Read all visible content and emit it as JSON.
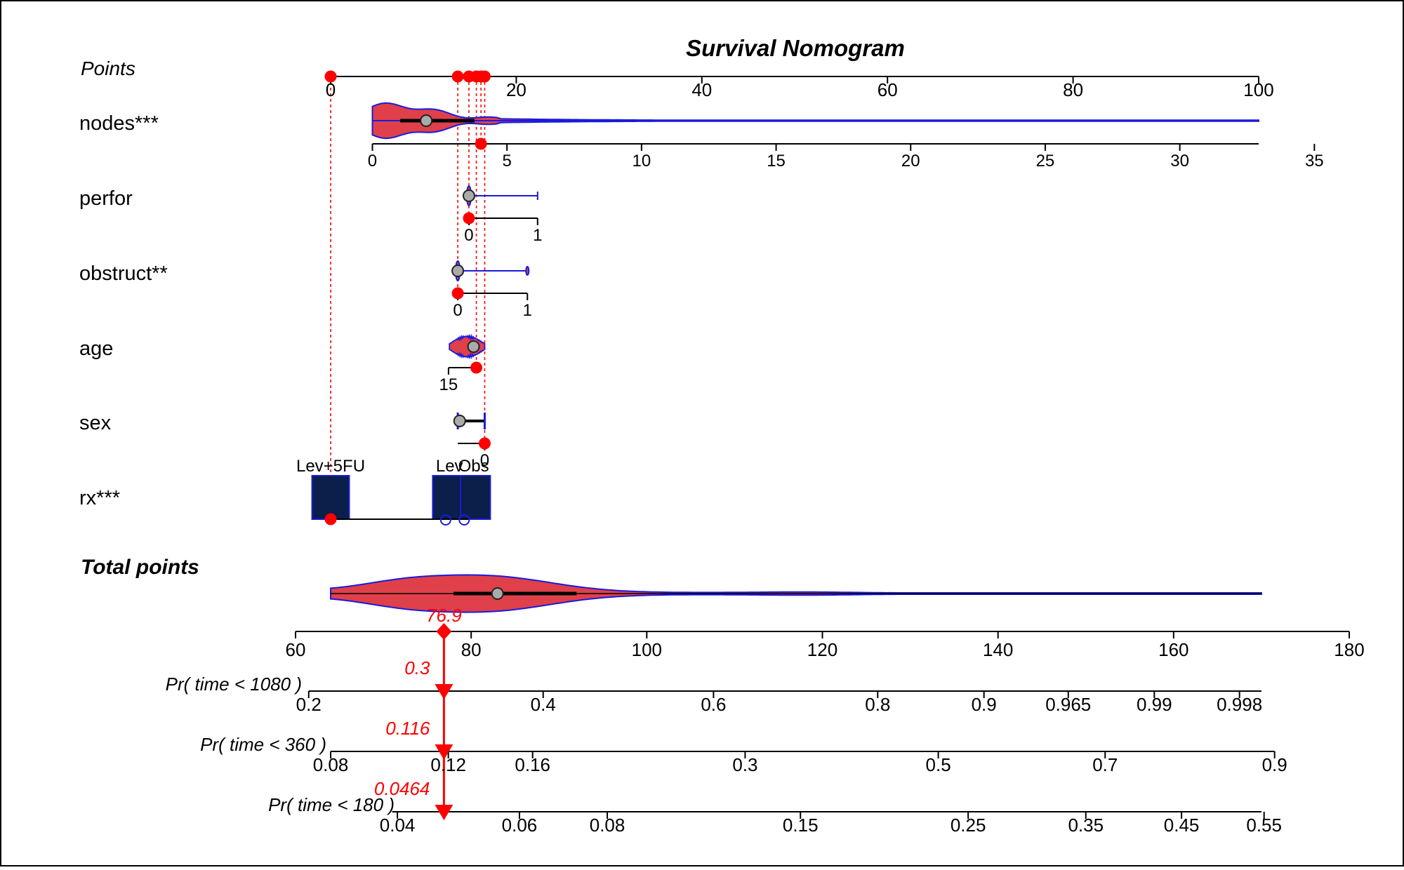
{
  "chart_data": {
    "type": "nomogram",
    "title": "Survival Nomogram",
    "points_axis": {
      "label": "Points",
      "range": [
        0,
        100
      ],
      "ticks": [
        "0",
        "20",
        "40",
        "60",
        "80",
        "100"
      ],
      "ticks_at": [
        0,
        20,
        40,
        60,
        80,
        100
      ]
    },
    "variables": [
      {
        "name": "nodes***",
        "kind": "continuous",
        "ticks": [
          "0",
          "5",
          "10",
          "15",
          "20",
          "25",
          "30",
          "35"
        ],
        "tick_values": [
          0,
          5,
          10,
          15,
          20,
          25,
          30,
          35
        ],
        "tick_points": [
          4.5,
          19.0,
          33.5,
          48.0,
          62.5,
          77.0,
          91.5,
          106.0
        ],
        "axis_points": [
          4.5,
          100
        ],
        "selected_points": 16.2,
        "median_points": 10.3
      },
      {
        "name": "perfor",
        "kind": "binary",
        "ticks": [
          "0",
          "1"
        ],
        "tick_values": [
          0,
          1
        ],
        "tick_points": [
          14.9,
          22.3
        ],
        "selected_points": 14.9,
        "median_points": 14.9
      },
      {
        "name": "obstruct**",
        "kind": "binary",
        "ticks": [
          "0",
          "1"
        ],
        "tick_values": [
          0,
          1
        ],
        "tick_points": [
          13.7,
          21.2
        ],
        "selected_points": 13.7,
        "median_points": 13.7
      },
      {
        "name": "age",
        "kind": "continuous",
        "ticks": [
          "15"
        ],
        "tick_values": [
          15
        ],
        "tick_points": [
          12.7
        ],
        "axis_points": [
          12.7,
          15.7
        ],
        "selected_points": 15.7,
        "median_points": 15.4
      },
      {
        "name": "sex",
        "kind": "binary",
        "ticks": [
          "0"
        ],
        "tick_values": [
          0
        ],
        "tick_points": [
          16.6
        ],
        "axis_points": [
          13.7,
          16.6
        ],
        "selected_points": 16.6,
        "median_points": 13.9
      },
      {
        "name": "rx***",
        "kind": "categorical",
        "levels": [
          "Lev+5FU",
          "Lev",
          "Obs"
        ],
        "level_points": [
          0,
          13.0,
          15.0
        ],
        "selected": "Lev+5FU",
        "selected_points": 0
      }
    ],
    "total_points": {
      "label": "Total points",
      "range": [
        60,
        180
      ],
      "ticks": [
        "60",
        "80",
        "100",
        "120",
        "140",
        "160",
        "180"
      ],
      "ticks_at": [
        60,
        80,
        100,
        120,
        140,
        160,
        180
      ],
      "distribution_range": [
        64,
        170
      ],
      "median": 83.0,
      "iqr": [
        78,
        92
      ],
      "selected": "76.9"
    },
    "probability_axes": [
      {
        "label": "Pr( time < 1080 )",
        "selected": "0.3",
        "ticks": [
          "0.2",
          "0.4",
          "0.6",
          "0.8",
          "0.9",
          "0.965",
          "0.99",
          "0.998"
        ],
        "ticks_at_total": [
          61.5,
          88.2,
          107.6,
          126.3,
          138.4,
          148.0,
          157.8,
          167.5
        ],
        "axis_total": [
          61.5,
          170
        ]
      },
      {
        "label": "Pr( time < 360 )",
        "selected": "0.116",
        "ticks": [
          "0.08",
          "0.12",
          "0.16",
          "0.3",
          "0.5",
          "0.7",
          "0.9"
        ],
        "ticks_at_total": [
          64.0,
          77.4,
          87.0,
          111.2,
          133.2,
          152.2,
          171.5
        ],
        "axis_total": [
          64,
          171.5
        ]
      },
      {
        "label": "Pr( time < 180 )",
        "selected": "0.0464",
        "ticks": [
          "0.04",
          "0.06",
          "0.08",
          "0.15",
          "0.25",
          "0.35",
          "0.45",
          "0.55"
        ],
        "ticks_at_total": [
          71.6,
          85.5,
          95.5,
          117.5,
          136.6,
          150.0,
          160.9,
          170.3
        ],
        "axis_total": [
          71,
          170
        ]
      }
    ],
    "selected_total": 76.9
  },
  "colors": {
    "selection": "#ff0000",
    "violin_fill": "#e0404a",
    "violin_stroke": "#1a1adc",
    "box_fill": "#0a1f4a",
    "median_dot": "#aaaaaa",
    "axis": "#000000"
  }
}
